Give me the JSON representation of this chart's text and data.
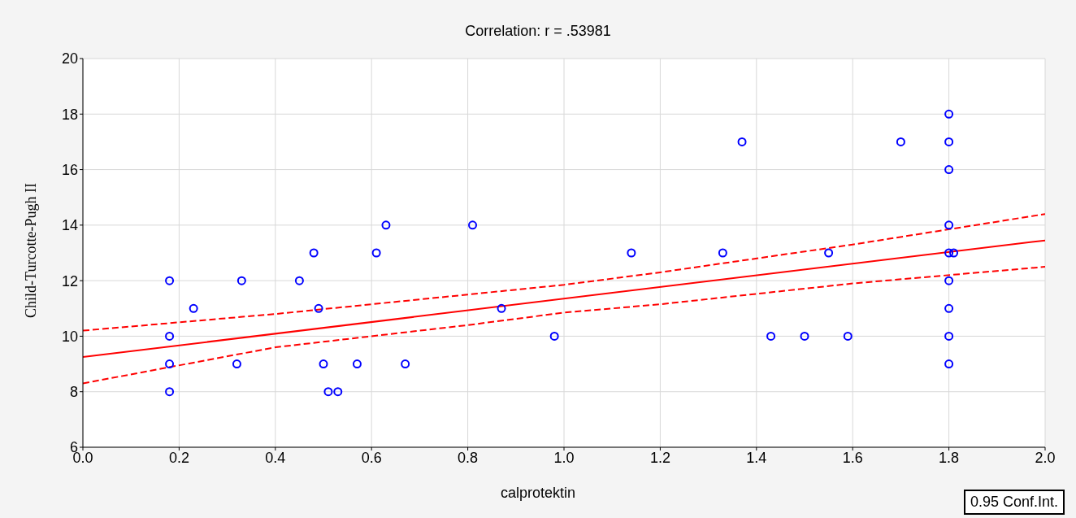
{
  "chart_data": {
    "type": "scatter",
    "title": "Correlation: r = .53981",
    "xlabel": "calprotektin",
    "ylabel": "Child-Turcotte-Pugh II",
    "xlim": [
      0,
      2
    ],
    "xticks": [
      {
        "value": 0,
        "label": "0.0"
      },
      {
        "value": 0.2,
        "label": "0.2"
      },
      {
        "value": 0.4,
        "label": "0.4"
      },
      {
        "value": 0.6,
        "label": "0.6"
      },
      {
        "value": 0.8,
        "label": "0.8"
      },
      {
        "value": 1,
        "label": "1.0"
      },
      {
        "value": 1.2,
        "label": "1.2"
      },
      {
        "value": 1.4,
        "label": "1.4"
      },
      {
        "value": 1.6,
        "label": "1.6"
      },
      {
        "value": 1.8,
        "label": "1.8"
      },
      {
        "value": 2,
        "label": "2.0"
      }
    ],
    "ylim": [
      6,
      20
    ],
    "yticks": [
      6,
      8,
      10,
      12,
      14,
      16,
      18,
      20
    ],
    "grid": true,
    "annotations": [
      "0.95 Conf.Int."
    ],
    "series": [
      {
        "marker": "circle",
        "color": "#0000ff",
        "x": [
          0.18,
          0.18,
          0.18,
          0.18,
          0.23,
          0.32,
          0.33,
          0.45,
          0.48,
          0.49,
          0.5,
          0.51,
          0.53,
          0.57,
          0.61,
          0.63,
          0.67,
          0.81,
          0.87,
          0.98,
          1.14,
          1.33,
          1.37,
          1.43,
          1.5,
          1.55,
          1.59,
          1.7,
          1.8,
          1.8,
          1.8,
          1.8,
          1.8,
          1.81,
          1.8,
          1.8,
          1.8,
          1.8
        ],
        "values": [
          12,
          10,
          9,
          8,
          11,
          9,
          12,
          12,
          13,
          11,
          9,
          8,
          8,
          9,
          13,
          14,
          9,
          14,
          11,
          10,
          13,
          13,
          17,
          10,
          10,
          13,
          10,
          17,
          18,
          17,
          16,
          14,
          13,
          13,
          12,
          11,
          10,
          9
        ]
      },
      {
        "type": "line",
        "color": "#ff0000",
        "line_style": "solid",
        "marker": "none",
        "x": [
          0,
          2
        ],
        "values": [
          9.25,
          13.45
        ]
      },
      {
        "type": "line",
        "color": "#ff0000",
        "line_style": "dashed",
        "marker": "none",
        "x": [
          0,
          0.4,
          0.8,
          1.0,
          1.2,
          1.6,
          2.0
        ],
        "values": [
          10.2,
          10.8,
          11.5,
          11.85,
          12.3,
          13.3,
          14.4
        ]
      },
      {
        "type": "line",
        "color": "#ff0000",
        "line_style": "dashed",
        "marker": "none",
        "x": [
          0,
          0.4,
          0.8,
          1.0,
          1.2,
          1.6,
          2.0
        ],
        "values": [
          8.3,
          9.6,
          10.4,
          10.85,
          11.15,
          11.9,
          12.5
        ]
      }
    ]
  }
}
